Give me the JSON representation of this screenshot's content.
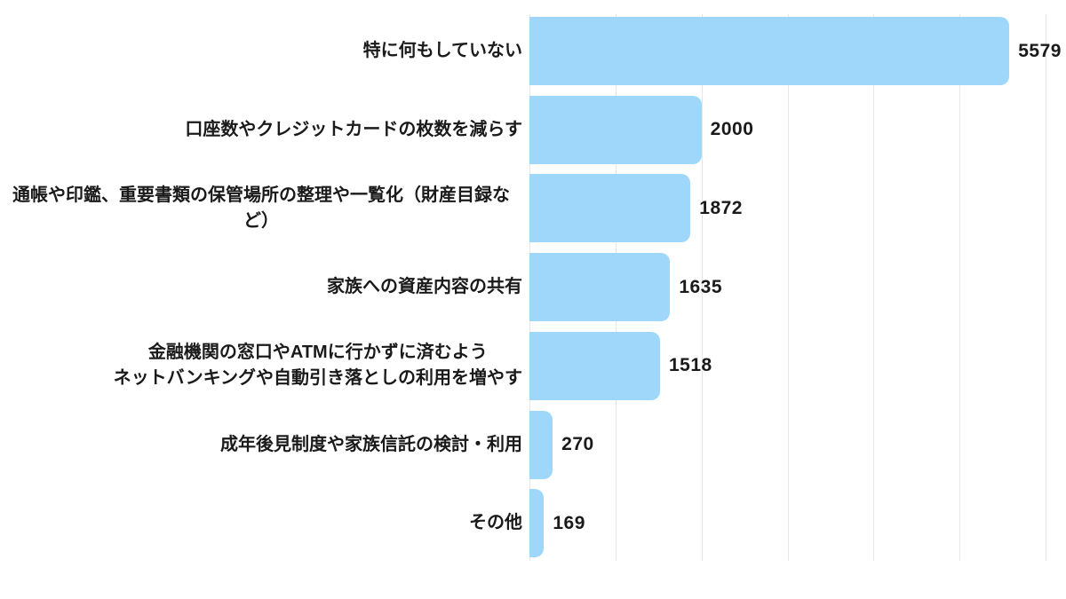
{
  "chart_data": {
    "type": "bar",
    "orientation": "horizontal",
    "title": "",
    "xlabel": "",
    "ylabel": "",
    "categories": [
      "特に何もしていない",
      "口座数やクレジットカードの枚数を減らす",
      "通帳や印鑑、重要書類の保管場所の整理や一覧化（財産目録など）",
      "家族への資産内容の共有",
      "金融機関の窓口やATMに行かずに済むよう\nネットバンキングや自動引き落としの利用を増やす",
      "成年後見制度や家族信託の検討・利用",
      "その他"
    ],
    "values": [
      5579,
      2000,
      1872,
      1635,
      1518,
      270,
      169
    ],
    "value_labels": [
      "5579",
      "2000",
      "1872",
      "1635",
      "1518",
      "270",
      "169"
    ],
    "xlim": [
      0,
      6000
    ],
    "grid": true,
    "grid_interval": 1000,
    "tick_labels_visible": false,
    "legend": false,
    "colors": {
      "bar": "#9ed7fa",
      "gridline": "#e7e7e7",
      "text": "#1a1a1a",
      "background": "#ffffff"
    }
  }
}
